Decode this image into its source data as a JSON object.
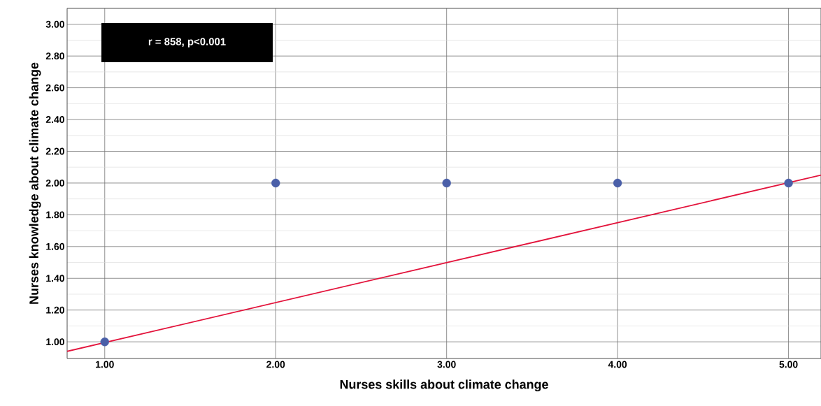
{
  "chart_data": {
    "type": "scatter",
    "xlabel": "Nurses skills about climate change",
    "ylabel": "Nurses knowledge about climate change",
    "annotations": [
      "r = 858, p<0.001"
    ],
    "series": [
      {
        "type": "scatter",
        "color": "#4a5fa8",
        "x": [
          1,
          2,
          3,
          4,
          5
        ],
        "values": [
          1,
          2,
          2,
          2,
          2
        ]
      },
      {
        "type": "line",
        "color": "#e3143c",
        "marker": "none",
        "x": [
          0.78,
          5.19
        ],
        "values": [
          0.94,
          2.05
        ]
      }
    ],
    "xlim": [
      0.78,
      5.19
    ],
    "ylim": [
      0.895,
      3.1
    ],
    "xticks": [
      {
        "value": 1,
        "label": "1.00"
      },
      {
        "value": 2,
        "label": "2.00"
      },
      {
        "value": 3,
        "label": "3.00"
      },
      {
        "value": 4,
        "label": "4.00"
      },
      {
        "value": 5,
        "label": "5.00"
      }
    ],
    "yticks": [
      {
        "value": 1,
        "label": "1.00"
      },
      {
        "value": 1.2,
        "label": "1.20"
      },
      {
        "value": 1.4,
        "label": "1.40"
      },
      {
        "value": 1.6,
        "label": "1.60"
      },
      {
        "value": 1.8,
        "label": "1.80"
      },
      {
        "value": 2,
        "label": "2.00"
      },
      {
        "value": 2.2,
        "label": "2.20"
      },
      {
        "value": 2.4,
        "label": "2.40"
      },
      {
        "value": 2.6,
        "label": "2.60"
      },
      {
        "value": 2.8,
        "label": "2.80"
      },
      {
        "value": 3,
        "label": "3.00"
      }
    ],
    "grid": true
  }
}
